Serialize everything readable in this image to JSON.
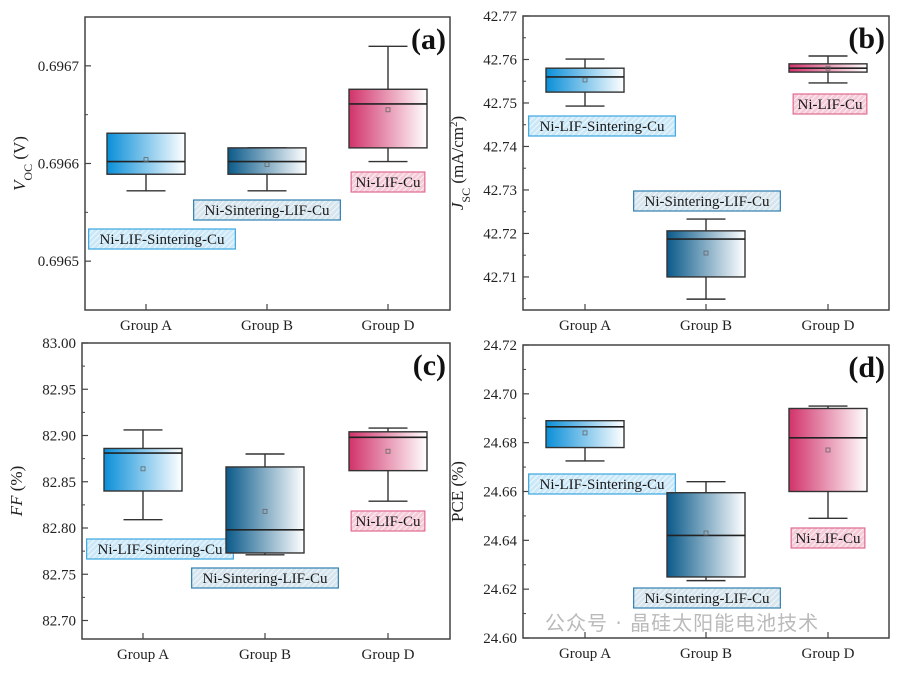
{
  "watermark": "公众号 · 晶硅太阳能电池技术",
  "colors": {
    "group_a": "#0a8fd8",
    "group_b": "#0b5a8a",
    "group_d": "#d1336a",
    "label_a_fill": "#cbe8f8",
    "label_a_border": "#3aa6e0",
    "label_b_fill": "#d6e5ee",
    "label_b_border": "#2f7fb0",
    "label_d_fill": "#f6cbd8",
    "label_d_border": "#e06a8f"
  },
  "chart_data": [
    {
      "type": "box",
      "panel_label": "(a)",
      "ylabel": {
        "main": "V",
        "sub": "OC",
        "rest": " (V)",
        "sup": "",
        "tail": ""
      },
      "ylim": [
        0.69645,
        0.69675
      ],
      "yticks": [
        0.6965,
        0.6966,
        0.6967
      ],
      "decimals": 4,
      "categories": [
        "Group A",
        "Group B",
        "Group D"
      ],
      "series_labels": [
        "Ni-LIF-Sintering-Cu",
        "Ni-Sintering-LIF-Cu",
        "Ni-LIF-Cu"
      ],
      "boxes": [
        {
          "min": 0.696572,
          "q1": 0.696589,
          "median": 0.696602,
          "q3": 0.696631,
          "max": 0.696631,
          "mean": 0.696604
        },
        {
          "min": 0.696572,
          "q1": 0.696589,
          "median": 0.696602,
          "q3": 0.696616,
          "max": 0.696616,
          "mean": 0.696599
        },
        {
          "min": 0.696602,
          "q1": 0.696616,
          "median": 0.696661,
          "q3": 0.696676,
          "max": 0.69672,
          "mean": 0.696655
        }
      ]
    },
    {
      "type": "box",
      "panel_label": "(b)",
      "ylabel": {
        "main": "J",
        "sub": "SC",
        "rest": " (mA/cm",
        "sup": "2",
        "tail": ")"
      },
      "ylim": [
        42.7024,
        42.77
      ],
      "yticks": [
        42.71,
        42.72,
        42.73,
        42.74,
        42.75,
        42.76,
        42.77
      ],
      "decimals": 2,
      "categories": [
        "Group A",
        "Group B",
        "Group D"
      ],
      "series_labels": [
        "Ni-LIF-Sintering-Cu",
        "Ni-Sintering-LIF-Cu",
        "Ni-LIF-Cu"
      ],
      "boxes": [
        {
          "min": 42.7493,
          "q1": 42.7525,
          "median": 42.756,
          "q3": 42.758,
          "max": 42.7601,
          "mean": 42.7553
        },
        {
          "min": 42.7049,
          "q1": 42.71,
          "median": 42.7187,
          "q3": 42.7206,
          "max": 42.7233,
          "mean": 42.7155
        },
        {
          "min": 42.7546,
          "q1": 42.7571,
          "median": 42.758,
          "q3": 42.759,
          "max": 42.7608,
          "mean": 42.758
        }
      ]
    },
    {
      "type": "box",
      "panel_label": "(c)",
      "ylabel": {
        "main": "FF",
        "sub": "",
        "rest": " (%)",
        "sup": "",
        "tail": ""
      },
      "ylim": [
        82.68,
        83.0
      ],
      "yticks": [
        82.7,
        82.75,
        82.8,
        82.85,
        82.9,
        82.95,
        83.0
      ],
      "decimals": 2,
      "categories": [
        "Group A",
        "Group B",
        "Group D"
      ],
      "series_labels": [
        "Ni-LIF-Sintering-Cu",
        "Ni-Sintering-LIF-Cu",
        "Ni-LIF-Cu"
      ],
      "boxes": [
        {
          "min": 82.809,
          "q1": 82.84,
          "median": 82.881,
          "q3": 82.886,
          "max": 82.906,
          "mean": 82.864
        },
        {
          "min": 82.771,
          "q1": 82.773,
          "median": 82.798,
          "q3": 82.866,
          "max": 82.88,
          "mean": 82.818
        },
        {
          "min": 82.829,
          "q1": 82.862,
          "median": 82.898,
          "q3": 82.904,
          "max": 82.908,
          "mean": 82.883
        }
      ]
    },
    {
      "type": "box",
      "panel_label": "(d)",
      "ylabel": {
        "main": "PCE",
        "sub": "",
        "rest": " (%)",
        "sup": "",
        "tail": ""
      },
      "ylim": [
        24.6,
        24.72
      ],
      "yticks": [
        24.6,
        24.62,
        24.64,
        24.66,
        24.68,
        24.7,
        24.72
      ],
      "decimals": 2,
      "categories": [
        "Group A",
        "Group B",
        "Group D"
      ],
      "series_labels": [
        "Ni-LIF-Sintering-Cu",
        "Ni-Sintering-LIF-Cu",
        "Ni-LIF-Cu"
      ],
      "boxes": [
        {
          "min": 24.6725,
          "q1": 24.678,
          "median": 24.6865,
          "q3": 24.689,
          "max": 24.689,
          "mean": 24.684
        },
        {
          "min": 24.6235,
          "q1": 24.625,
          "median": 24.642,
          "q3": 24.6595,
          "max": 24.664,
          "mean": 24.643
        },
        {
          "min": 24.649,
          "q1": 24.66,
          "median": 24.682,
          "q3": 24.694,
          "max": 24.695,
          "mean": 24.677
        }
      ]
    }
  ]
}
